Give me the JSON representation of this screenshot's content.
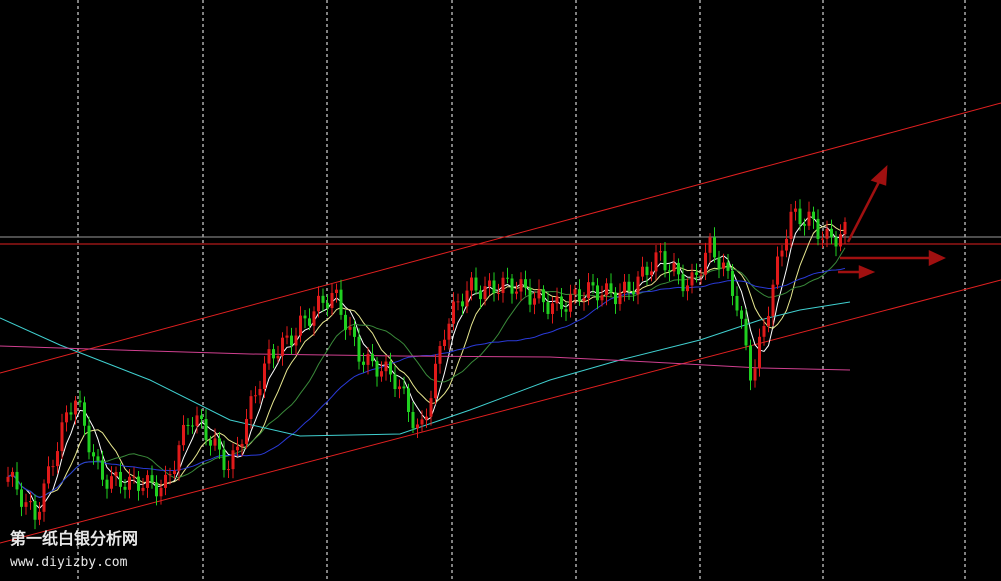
{
  "watermark": {
    "title": "第一纸白银分析网",
    "url": "www.diyizby.com"
  }
}
